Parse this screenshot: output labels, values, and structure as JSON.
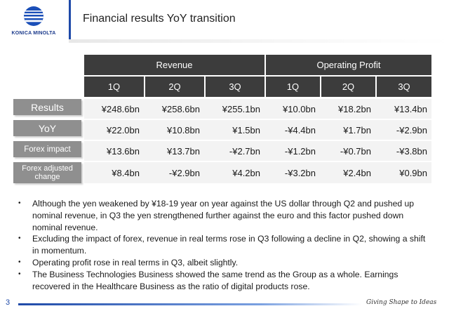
{
  "header": {
    "brand": "KONICA MINOLTA",
    "title": "Financial results YoY transition"
  },
  "table": {
    "groups": [
      "Revenue",
      "Operating Profit"
    ],
    "quarters": [
      "1Q",
      "2Q",
      "3Q",
      "1Q",
      "2Q",
      "3Q"
    ],
    "rows": [
      {
        "label": "Results",
        "values": [
          "¥248.6bn",
          "¥258.6bn",
          "¥255.1bn",
          "¥10.0bn",
          "¥18.2bn",
          "¥13.4bn"
        ]
      },
      {
        "label": "YoY",
        "values": [
          "¥22.0bn",
          "¥10.8bn",
          "¥1.5bn",
          "-¥4.4bn",
          "¥1.7bn",
          "-¥2.9bn"
        ]
      },
      {
        "label": "Forex impact",
        "values": [
          "¥13.6bn",
          "¥13.7bn",
          "-¥2.7bn",
          "-¥1.2bn",
          "-¥0.7bn",
          "-¥3.8bn"
        ]
      },
      {
        "label": "Forex adjusted change",
        "values": [
          "¥8.4bn",
          "-¥2.9bn",
          "¥4.2bn",
          "-¥3.2bn",
          "¥2.4bn",
          "¥0.9bn"
        ]
      }
    ]
  },
  "bullets": [
    "Although the yen weakened by ¥18-19 year on year against the US dollar through Q2 and pushed up nominal revenue, in Q3 the yen strengthened further against the euro and this factor pushed down nominal revenue.",
    "Excluding the impact of forex, revenue in real terms rose in Q3 following a decline in Q2, showing a shift in momentum.",
    "Operating profit rose in real terms in Q3, albeit slightly.",
    "The Business Technologies Business showed the same trend as the Group as a whole. Earnings recovered in the Healthcare Business as the ratio of digital products rose."
  ],
  "footer": {
    "page_number": "3",
    "tagline": "Giving Shape to Ideas"
  },
  "colors": {
    "brand_blue": "#1f4aa8",
    "header_dark": "#3c3c3c",
    "row_label_gray": "#8f8f8f"
  }
}
